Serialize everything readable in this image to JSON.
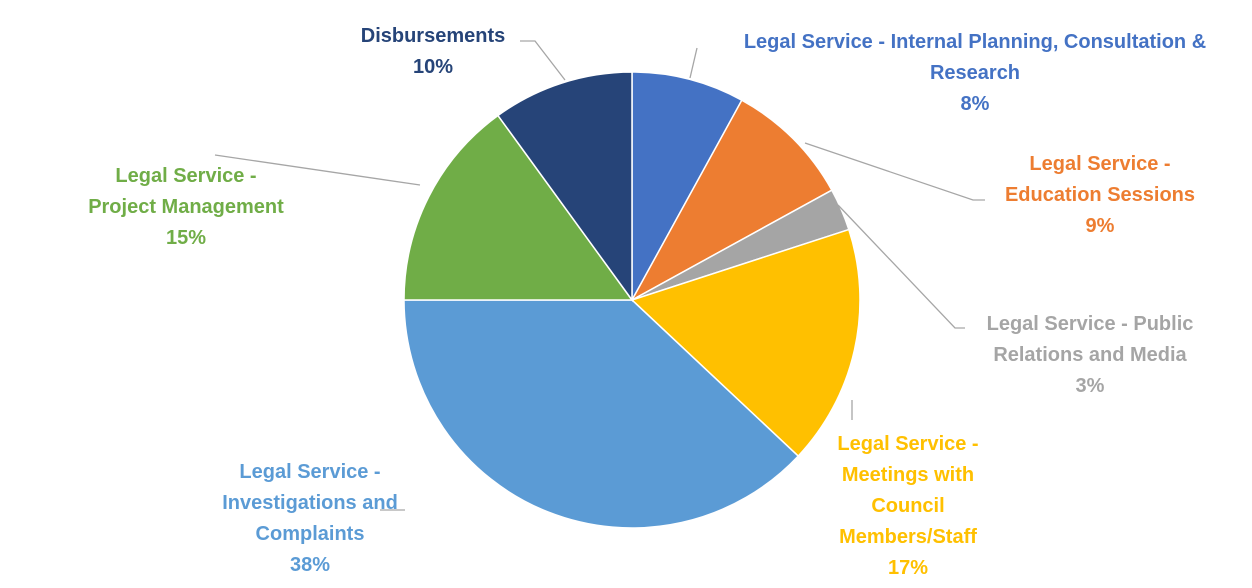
{
  "chart_data": {
    "type": "pie",
    "title": "",
    "slices": [
      {
        "label": "Legal Service - Internal Planning, Consultation & Research",
        "label_lines": [
          "Legal Service - Internal Planning, Consultation &",
          "Research"
        ],
        "value": 8,
        "value_label": "8%",
        "color": "#4472C4"
      },
      {
        "label": "Legal Service - Education Sessions",
        "label_lines": [
          "Legal Service -",
          "Education Sessions"
        ],
        "value": 9,
        "value_label": "9%",
        "color": "#ED7D31"
      },
      {
        "label": "Legal Service - Public Relations and Media",
        "label_lines": [
          "Legal Service - Public",
          "Relations and Media"
        ],
        "value": 3,
        "value_label": "3%",
        "color": "#A5A5A5"
      },
      {
        "label": "Legal Service - Meetings with Council Members/Staff",
        "label_lines": [
          "Legal Service -",
          "Meetings with",
          "Council",
          "Members/Staff"
        ],
        "value": 17,
        "value_label": "17%",
        "color": "#FFC000"
      },
      {
        "label": "Legal Service - Investigations and Complaints",
        "label_lines": [
          "Legal Service -",
          "Investigations and",
          "Complaints"
        ],
        "value": 38,
        "value_label": "38%",
        "color": "#5B9BD5"
      },
      {
        "label": "Legal Service - Project Management",
        "label_lines": [
          "Legal Service -",
          "Project Management"
        ],
        "value": 15,
        "value_label": "15%",
        "color": "#70AD47"
      },
      {
        "label": "Disbursements",
        "label_lines": [
          "Disbursements"
        ],
        "value": 10,
        "value_label": "10%",
        "color": "#264478"
      }
    ],
    "leader_line_color": "#A6A6A6",
    "start_angle": "top (12 o'clock)",
    "direction": "clockwise",
    "legend": "none"
  }
}
